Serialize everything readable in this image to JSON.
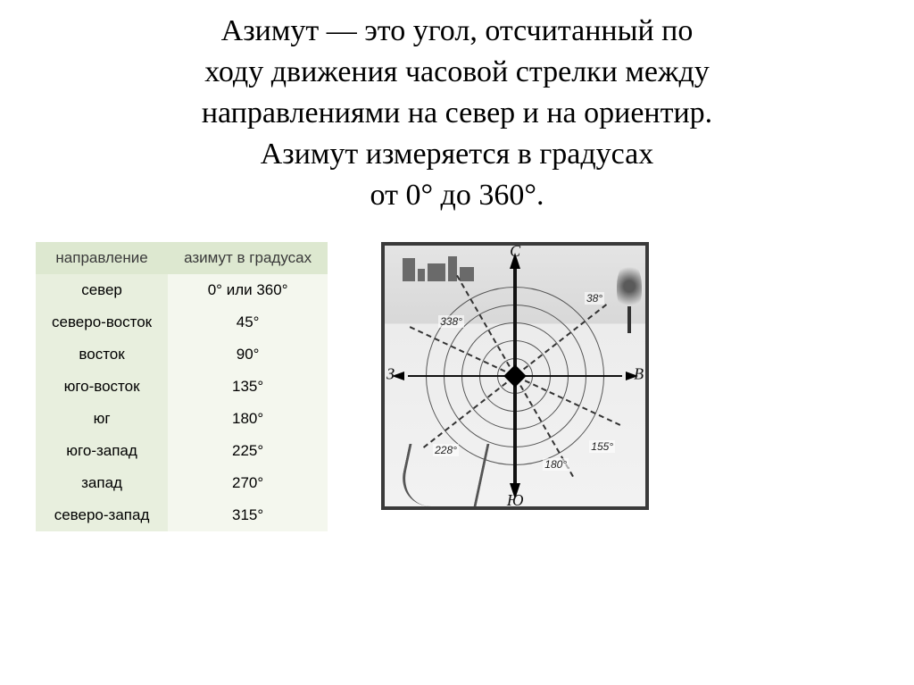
{
  "title": {
    "line1": "Азимут — это угол, отсчитанный по",
    "line2": "ходу движения часовой стрелки между",
    "line3": "направлениями на север и на ориентир.",
    "line4": "Азимут измеряется в градусах",
    "line5": "от 0° до 360°.",
    "fontsize": 34,
    "color": "#000000"
  },
  "table": {
    "header_direction": "направление",
    "header_value": "азимут в градусах",
    "header_bg": "#dde8d0",
    "dir_col_bg": "#e8efde",
    "val_col_bg": "#f4f7ee",
    "font_size": 17,
    "rows": [
      {
        "direction": "север",
        "value": "0° или 360°"
      },
      {
        "direction": "северо-восток",
        "value": "45°"
      },
      {
        "direction": "восток",
        "value": "90°"
      },
      {
        "direction": "юго-восток",
        "value": "135°"
      },
      {
        "direction": "юг",
        "value": "180°"
      },
      {
        "direction": "юго-запад",
        "value": "225°"
      },
      {
        "direction": "запад",
        "value": "270°"
      },
      {
        "direction": "северо-запад",
        "value": "315°"
      }
    ]
  },
  "compass": {
    "border_color": "#3a3a3a",
    "ring_color": "#555555",
    "needle_color": "#111111",
    "cardinal": {
      "n": "С",
      "s": "Ю",
      "e": "В",
      "w": "З"
    },
    "degree_labels": {
      "d38": "38°",
      "d155": "155°",
      "d180": "180°",
      "d228": "228°",
      "d338": "338°"
    },
    "dashed_line_angles_deg": [
      -38,
      25,
      60
    ]
  }
}
